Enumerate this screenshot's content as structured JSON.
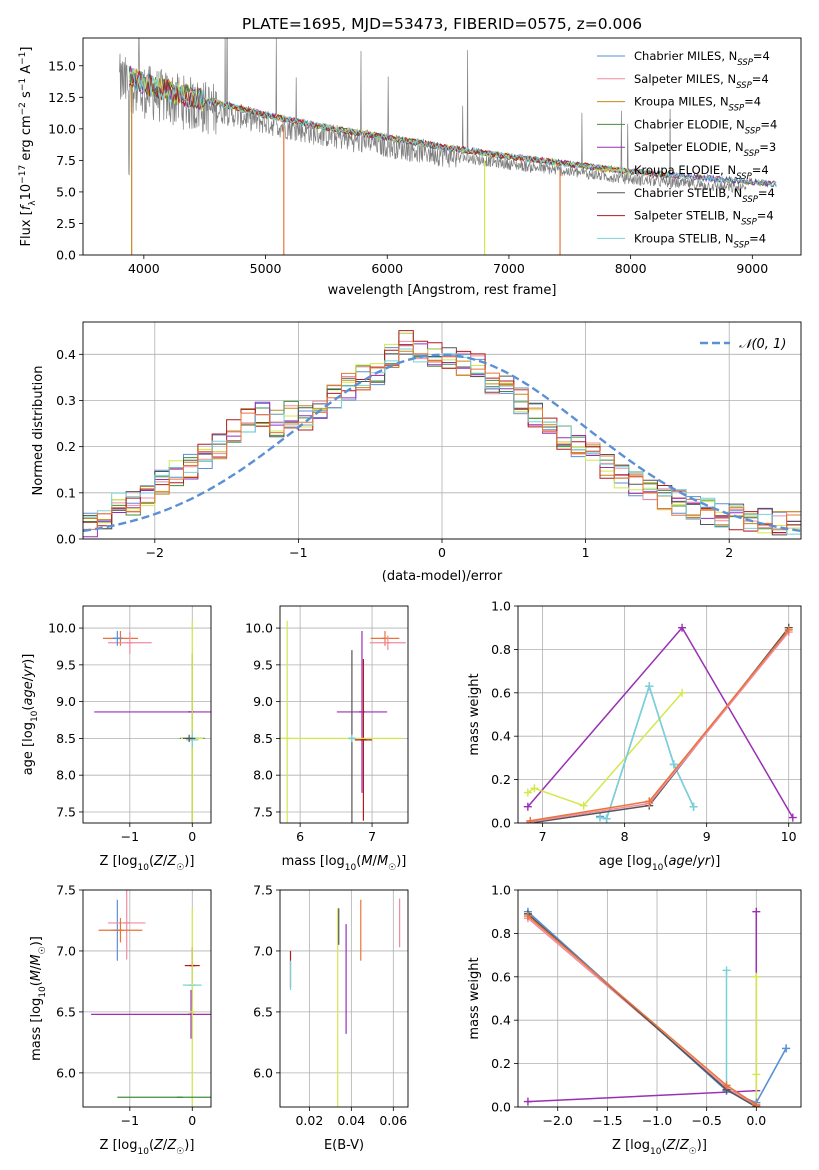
{
  "title": "PLATE=1695, MJD=53473, FIBERID=0575, z=0.006",
  "colors": {
    "chabrier_miles": "#5b8fd6",
    "salpeter_miles": "#f08ca0",
    "kroupa_miles": "#c08a1e",
    "chabrier_elodie": "#3f8f3f",
    "salpeter_elodie": "#9a2fb5",
    "kroupa_elodie": "#d4e84a",
    "chabrier_stelib": "#555555",
    "salpeter_stelib": "#b01c1c",
    "kroupa_stelib": "#78d2d8",
    "data_grey": "#808080",
    "orange": "#e8743b"
  },
  "chart_data": [
    {
      "id": "spectrum",
      "type": "line",
      "title": "PLATE=1695, MJD=53473, FIBERID=0575, z=0.006",
      "xlabel": "wavelength [Angstrom, rest frame]",
      "ylabel": "Flux [f_λ 10^-17 erg cm^-2 s^-1 A^-1]",
      "xlim": [
        3500,
        9400
      ],
      "ylim": [
        0,
        17.2
      ],
      "xticks": [
        "4000",
        "5000",
        "6000",
        "7000",
        "8000",
        "9000"
      ],
      "yticks": [
        "0.0",
        "2.5",
        "5.0",
        "7.5",
        "10.0",
        "12.5",
        "15.0"
      ],
      "legend_position": "top-right",
      "legend": [
        {
          "label": "Chabrier MILES, N",
          "sub": "SSP",
          "tail": "=4",
          "color": "#5b8fd6"
        },
        {
          "label": "Salpeter MILES, N",
          "sub": "SSP",
          "tail": "=4",
          "color": "#f08ca0"
        },
        {
          "label": "Kroupa MILES, N",
          "sub": "SSP",
          "tail": "=4",
          "color": "#c08a1e"
        },
        {
          "label": "Chabrier ELODIE, N",
          "sub": "SSP",
          "tail": "=4",
          "color": "#3f8f3f"
        },
        {
          "label": "Salpeter ELODIE, N",
          "sub": "SSP",
          "tail": "=3",
          "color": "#9a2fb5"
        },
        {
          "label": "Kroupa ELODIE, N",
          "sub": "SSP",
          "tail": "=4",
          "color": "#d4e84a"
        },
        {
          "label": "Chabrier STELIB, N",
          "sub": "SSP",
          "tail": "=4",
          "color": "#555555"
        },
        {
          "label": "Salpeter STELIB, N",
          "sub": "SSP",
          "tail": "=4",
          "color": "#b01c1c"
        },
        {
          "label": "Kroupa STELIB, N",
          "sub": "SSP",
          "tail": "=4",
          "color": "#78d2d8"
        }
      ],
      "continuum": [
        [
          3800,
          13.8
        ],
        [
          4000,
          13.0
        ],
        [
          4200,
          12.4
        ],
        [
          4500,
          11.7
        ],
        [
          5000,
          10.5
        ],
        [
          5500,
          9.5
        ],
        [
          6000,
          8.7
        ],
        [
          6500,
          7.9
        ],
        [
          7000,
          7.2
        ],
        [
          7500,
          6.6
        ],
        [
          8000,
          6.0
        ],
        [
          8500,
          5.6
        ],
        [
          9000,
          5.2
        ],
        [
          9200,
          5.0
        ]
      ],
      "model_end": [
        3880,
        9200
      ],
      "data_range": [
        3800,
        8950
      ],
      "model_drops": [
        {
          "x": 3900,
          "color": "#c08a1e"
        },
        {
          "x": 5150,
          "color": "#e8743b"
        },
        {
          "x": 6800,
          "color": "#d4e84a"
        },
        {
          "x": 7420,
          "color": "#e8743b"
        }
      ]
    },
    {
      "id": "residuals",
      "type": "line",
      "xlabel": "(data-model)/error",
      "ylabel": "Normed distribution",
      "xlim": [
        -2.5,
        2.5
      ],
      "ylim": [
        0,
        0.47
      ],
      "xticks": [
        "−2",
        "−1",
        "0",
        "1",
        "2"
      ],
      "yticks": [
        "0.0",
        "0.1",
        "0.2",
        "0.3",
        "0.4"
      ],
      "legend": [
        {
          "label": "𝒩(0, 1)",
          "color": "#5b8fd6",
          "style": "dashed"
        }
      ],
      "legend_position": "top-right",
      "bins": [
        -2.5,
        -2.4,
        -2.3,
        -2.2,
        -2.1,
        -2.0,
        -1.9,
        -1.8,
        -1.7,
        -1.6,
        -1.5,
        -1.4,
        -1.3,
        -1.2,
        -1.1,
        -1.0,
        -0.9,
        -0.8,
        -0.7,
        -0.6,
        -0.5,
        -0.4,
        -0.3,
        -0.2,
        -0.1,
        0.0,
        0.1,
        0.2,
        0.3,
        0.4,
        0.5,
        0.6,
        0.7,
        0.8,
        0.9,
        1.0,
        1.1,
        1.2,
        1.3,
        1.4,
        1.5,
        1.6,
        1.7,
        1.8,
        1.9,
        2.0,
        2.1,
        2.2,
        2.3,
        2.4,
        2.5
      ],
      "hist_base": [
        0.03,
        0.05,
        0.07,
        0.08,
        0.1,
        0.12,
        0.14,
        0.16,
        0.18,
        0.2,
        0.23,
        0.26,
        0.27,
        0.25,
        0.27,
        0.26,
        0.29,
        0.31,
        0.33,
        0.35,
        0.36,
        0.4,
        0.43,
        0.41,
        0.4,
        0.39,
        0.38,
        0.38,
        0.34,
        0.33,
        0.3,
        0.27,
        0.25,
        0.22,
        0.2,
        0.19,
        0.16,
        0.14,
        0.12,
        0.11,
        0.09,
        0.08,
        0.07,
        0.06,
        0.05,
        0.05,
        0.04,
        0.04,
        0.03,
        0.03
      ]
    },
    {
      "id": "age_vs_Z",
      "type": "scatter",
      "xlabel": "Z [log10(Z/Z☉)]",
      "ylabel": "age  [log10(age/yr)]",
      "xlim": [
        -1.75,
        0.3
      ],
      "ylim": [
        7.35,
        10.3
      ],
      "xticks": [
        "−1",
        "0"
      ],
      "yticks": [
        "7.5",
        "8.0",
        "8.5",
        "9.0",
        "9.5",
        "10.0"
      ],
      "points": [
        {
          "x": -1.15,
          "y": 9.86,
          "xerr": 0.28,
          "yerr": 0.1,
          "color": "#e8743b"
        },
        {
          "x": -1.0,
          "y": 9.8,
          "xerr": 0.35,
          "yerr": 0.15,
          "color": "#f08ca0"
        },
        {
          "x": -1.2,
          "y": 9.86,
          "xerr": 0.08,
          "yerr": 0.1,
          "color": "#5b8fd6"
        },
        {
          "x": 0.0,
          "y": 8.5,
          "xerr": 0.2,
          "yerr": 1.15,
          "color": "#3f8f3f"
        },
        {
          "x": -0.02,
          "y": 8.86,
          "xerr": 1.55,
          "yerr": 0.0,
          "color": "#9a2fb5"
        },
        {
          "x": 0.0,
          "y": 8.5,
          "xerr": 0.18,
          "yerr": 1.6,
          "color": "#d4e84a"
        },
        {
          "x": 0.0,
          "y": 8.48,
          "xerr": 0.1,
          "yerr": 0.1,
          "color": "#78d2d8"
        },
        {
          "x": -0.05,
          "y": 8.5,
          "xerr": 0.1,
          "yerr": 0.05,
          "color": "#555555"
        }
      ]
    },
    {
      "id": "age_vs_mass",
      "type": "scatter",
      "xlabel": "mass [log10(M/M☉)]",
      "ylabel": "",
      "xlim": [
        5.72,
        7.5
      ],
      "ylim": [
        7.35,
        10.3
      ],
      "xticks": [
        "6",
        "7"
      ],
      "yticks": [
        "7.5",
        "8.0",
        "8.5",
        "9.0",
        "9.5",
        "10.0"
      ],
      "points": [
        {
          "x": 7.18,
          "y": 9.86,
          "xerr": 0.2,
          "yerr": 0.1,
          "color": "#e8743b"
        },
        {
          "x": 7.22,
          "y": 9.8,
          "xerr": 0.25,
          "yerr": 0.1,
          "color": "#f08ca0"
        },
        {
          "x": 6.86,
          "y": 8.86,
          "xerr": 0.35,
          "yerr": 1.1,
          "color": "#9a2fb5"
        },
        {
          "x": 6.72,
          "y": 8.5,
          "xerr": 0.05,
          "yerr": 1.2,
          "color": "#555555"
        },
        {
          "x": 6.88,
          "y": 8.48,
          "xerr": 0.12,
          "yerr": 1.1,
          "color": "#b01c1c"
        },
        {
          "x": 5.82,
          "y": 8.5,
          "xerr": 1.6,
          "yerr": 1.6,
          "color": "#d4e84a"
        },
        {
          "x": 6.72,
          "y": 8.5,
          "xerr": 0.05,
          "yerr": 0.05,
          "color": "#78d2d8"
        }
      ]
    },
    {
      "id": "weight_vs_age",
      "type": "line",
      "xlabel": "age  [log10(age/yr)]",
      "ylabel": "mass weight",
      "xlim": [
        6.7,
        10.15
      ],
      "ylim": [
        0,
        1
      ],
      "xticks": [
        "7",
        "8",
        "9",
        "10"
      ],
      "yticks": [
        "0.0",
        "0.2",
        "0.4",
        "0.6",
        "0.8",
        "1.0"
      ],
      "series": [
        {
          "color": "#9a2fb5",
          "x": [
            6.82,
            8.7,
            10.05
          ],
          "y": [
            0.075,
            0.9,
            0.025
          ]
        },
        {
          "color": "#d4e84a",
          "x": [
            6.82,
            6.9,
            7.5,
            8.7
          ],
          "y": [
            0.14,
            0.16,
            0.08,
            0.6
          ]
        },
        {
          "color": "#5b8fd6",
          "x": [
            7.7,
            7.78,
            8.3,
            8.6,
            8.84
          ],
          "y": [
            0.03,
            0.02,
            0.63,
            0.27,
            0.075
          ]
        },
        {
          "color": "#78d2d8",
          "x": [
            7.7,
            7.78,
            8.3,
            8.6,
            8.84
          ],
          "y": [
            0.025,
            0.02,
            0.63,
            0.27,
            0.075
          ]
        },
        {
          "color": "#555555",
          "x": [
            6.85,
            8.3,
            10.0
          ],
          "y": [
            0.0,
            0.08,
            0.9
          ]
        },
        {
          "color": "#f08ca0",
          "x": [
            6.85,
            8.3,
            10.0
          ],
          "y": [
            0.005,
            0.09,
            0.88
          ]
        },
        {
          "color": "#e8743b",
          "x": [
            6.85,
            8.3,
            10.0
          ],
          "y": [
            0.01,
            0.1,
            0.89
          ]
        }
      ]
    },
    {
      "id": "mass_vs_Z",
      "type": "scatter",
      "xlabel": "Z [log10(Z/Z☉)]",
      "ylabel": "mass [log10(M/M☉)]",
      "xlim": [
        -1.75,
        0.3
      ],
      "ylim": [
        5.72,
        7.5
      ],
      "xticks": [
        "−1",
        "0"
      ],
      "yticks": [
        "6.0",
        "6.5",
        "7.0",
        "7.5"
      ],
      "points": [
        {
          "x": -1.2,
          "y": 7.17,
          "xerr": 0.1,
          "yerr": 0.25,
          "color": "#5b8fd6"
        },
        {
          "x": -1.05,
          "y": 7.23,
          "xerr": 0.3,
          "yerr": 0.3,
          "color": "#f08ca0"
        },
        {
          "x": -1.15,
          "y": 7.17,
          "xerr": 0.35,
          "yerr": 0.1,
          "color": "#e8743b"
        },
        {
          "x": 0.0,
          "y": 6.88,
          "xerr": 0.12,
          "yerr": 0.15,
          "color": "#b01c1c"
        },
        {
          "x": 0.0,
          "y": 6.72,
          "xerr": 0.15,
          "yerr": 0.15,
          "color": "#78d2d8"
        },
        {
          "x": -0.02,
          "y": 6.48,
          "xerr": 1.6,
          "yerr": 0.2,
          "color": "#9a2fb5"
        },
        {
          "x": 0.0,
          "y": 6.5,
          "xerr": 0.05,
          "yerr": 0.85,
          "color": "#d4e84a"
        },
        {
          "x": -0.2,
          "y": 5.8,
          "xerr": 1.0,
          "yerr": 0.0,
          "color": "#3f8f3f"
        }
      ]
    },
    {
      "id": "mass_vs_ebv",
      "type": "scatter",
      "xlabel": "E(B-V)",
      "ylabel": "",
      "xlim": [
        0.006,
        0.067
      ],
      "ylim": [
        5.72,
        7.5
      ],
      "xticks": [
        "0.02",
        "0.04",
        "0.06"
      ],
      "yticks": [
        "6.0",
        "6.5",
        "7.0",
        "7.5"
      ],
      "points": [
        {
          "x": 0.011,
          "y": 6.85,
          "xerr": 0,
          "yerr": 0.15,
          "color": "#b01c1c"
        },
        {
          "x": 0.011,
          "y": 6.8,
          "xerr": 0,
          "yerr": 0.12,
          "color": "#78d2d8"
        },
        {
          "x": 0.0335,
          "y": 6.5,
          "xerr": 0,
          "yerr": 0.85,
          "color": "#d4e84a"
        },
        {
          "x": 0.034,
          "y": 7.2,
          "xerr": 0,
          "yerr": 0.15,
          "color": "#555555"
        },
        {
          "x": 0.0375,
          "y": 6.77,
          "xerr": 0,
          "yerr": 0.45,
          "color": "#9a2fb5"
        },
        {
          "x": 0.0445,
          "y": 7.17,
          "xerr": 0,
          "yerr": 0.25,
          "color": "#e8743b"
        },
        {
          "x": 0.063,
          "y": 7.23,
          "xerr": 0,
          "yerr": 0.2,
          "color": "#f08ca0"
        }
      ]
    },
    {
      "id": "weight_vs_Z",
      "type": "line",
      "xlabel": "Z [log10(Z/Z☉)]",
      "ylabel": "mass weight",
      "xlim": [
        -2.4,
        0.45
      ],
      "ylim": [
        0,
        1
      ],
      "xticks": [
        "−2.0",
        "−1.5",
        "−1.0",
        "−0.5",
        "0.0"
      ],
      "yticks": [
        "0.0",
        "0.2",
        "0.4",
        "0.6",
        "0.8",
        "1.0"
      ],
      "series": [
        {
          "color": "#9a2fb5",
          "x": [
            -2.3,
            0.0,
            0.0
          ],
          "y": [
            0.025,
            0.075,
            0.9
          ]
        },
        {
          "color": "#d4e84a",
          "x": [
            0.0,
            0.0,
            0.0
          ],
          "y": [
            0.0,
            0.15,
            0.6
          ]
        },
        {
          "color": "#78d2d8",
          "x": [
            -0.3,
            -0.3,
            0.0,
            0.3
          ],
          "y": [
            0.63,
            0.075,
            0.02,
            0.27
          ]
        },
        {
          "color": "#5b8fd6",
          "x": [
            -2.3,
            -0.3,
            0.0,
            0.3
          ],
          "y": [
            0.9,
            0.075,
            0.02,
            0.27
          ]
        },
        {
          "color": "#f08ca0",
          "x": [
            -2.3,
            -0.3,
            0.0
          ],
          "y": [
            0.87,
            0.09,
            0.005
          ]
        },
        {
          "color": "#555555",
          "x": [
            -2.3,
            -0.3,
            0.0
          ],
          "y": [
            0.89,
            0.08,
            0.0
          ]
        },
        {
          "color": "#e8743b",
          "x": [
            -2.3,
            -0.3,
            0.0
          ],
          "y": [
            0.88,
            0.1,
            0.01
          ]
        }
      ]
    }
  ]
}
